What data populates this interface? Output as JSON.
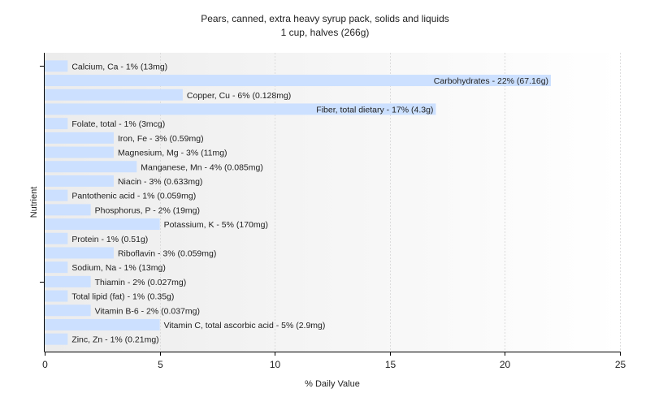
{
  "chart_data": {
    "type": "bar",
    "orientation": "horizontal",
    "title": "Pears, canned, extra heavy syrup pack, solids and liquids",
    "subtitle": "1 cup, halves (266g)",
    "xlabel": "% Daily Value",
    "ylabel": "Nutrient",
    "xlim": [
      0,
      25
    ],
    "xticks": [
      0,
      5,
      10,
      15,
      20,
      25
    ],
    "grid": true,
    "bar_color": "#cce0ff",
    "categories": [
      "Calcium, Ca",
      "Carbohydrates",
      "Copper, Cu",
      "Fiber, total dietary",
      "Folate, total",
      "Iron, Fe",
      "Magnesium, Mg",
      "Manganese, Mn",
      "Niacin",
      "Pantothenic acid",
      "Phosphorus, P",
      "Potassium, K",
      "Protein",
      "Riboflavin",
      "Sodium, Na",
      "Thiamin",
      "Total lipid (fat)",
      "Vitamin B-6",
      "Vitamin C, total ascorbic acid",
      "Zinc, Zn"
    ],
    "values": [
      1,
      22,
      6,
      17,
      1,
      3,
      3,
      4,
      3,
      1,
      2,
      5,
      1,
      3,
      1,
      2,
      1,
      2,
      5,
      1
    ],
    "labels": [
      "Calcium, Ca - 1% (13mg)",
      "Carbohydrates - 22% (67.16g)",
      "Copper, Cu - 6% (0.128mg)",
      "Fiber, total dietary - 17% (4.3g)",
      "Folate, total - 1% (3mcg)",
      "Iron, Fe - 3% (0.59mg)",
      "Magnesium, Mg - 3% (11mg)",
      "Manganese, Mn - 4% (0.085mg)",
      "Niacin - 3% (0.633mg)",
      "Pantothenic acid - 1% (0.059mg)",
      "Phosphorus, P - 2% (19mg)",
      "Potassium, K - 5% (170mg)",
      "Protein - 1% (0.51g)",
      "Riboflavin - 3% (0.059mg)",
      "Sodium, Na - 1% (13mg)",
      "Thiamin - 2% (0.027mg)",
      "Total lipid (fat) - 1% (0.35g)",
      "Vitamin B-6 - 2% (0.037mg)",
      "Vitamin C, total ascorbic acid - 5% (2.9mg)",
      "Zinc, Zn - 1% (0.21mg)"
    ]
  }
}
